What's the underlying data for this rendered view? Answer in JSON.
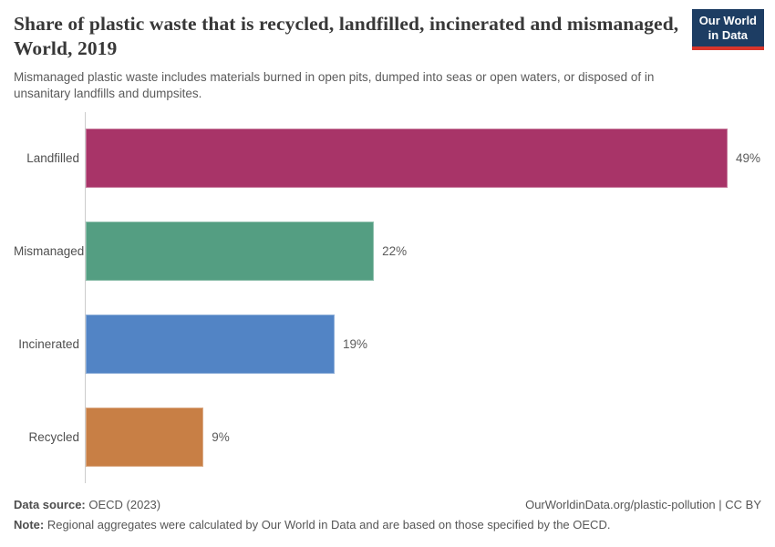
{
  "header": {
    "title": "Share of plastic waste that is recycled, landfilled, incinerated and mismanaged, World, 2019",
    "subtitle": "Mismanaged plastic waste includes materials burned in open pits, dumped into seas or open waters, or disposed of in unsanitary landfills and dumpsites.",
    "logo": {
      "line1": "Our World",
      "line2": "in Data",
      "background_color": "#1d3d63",
      "accent_color": "#d8352c"
    }
  },
  "chart_data": {
    "type": "bar",
    "orientation": "horizontal",
    "title": "Share of plastic waste that is recycled, landfilled, incinerated and mismanaged, World, 2019",
    "categories": [
      "Landfilled",
      "Mismanaged",
      "Incinerated",
      "Recycled"
    ],
    "values": [
      49,
      22,
      19,
      9
    ],
    "value_labels": [
      "49%",
      "22%",
      "19%",
      "9%"
    ],
    "colors": [
      "#a83468",
      "#549e82",
      "#5284c5",
      "#c87f45"
    ],
    "unit": "%",
    "xlim": [
      0,
      49
    ],
    "grid": false,
    "legend": "none",
    "axis_color": "#cccccc"
  },
  "footer": {
    "source_label": "Data source:",
    "source_value": " OECD (2023)",
    "rights": "OurWorldinData.org/plastic-pollution | CC BY",
    "note_label": "Note:",
    "note_value": " Regional aggregates were calculated by Our World in Data and are based on those specified by the OECD."
  }
}
